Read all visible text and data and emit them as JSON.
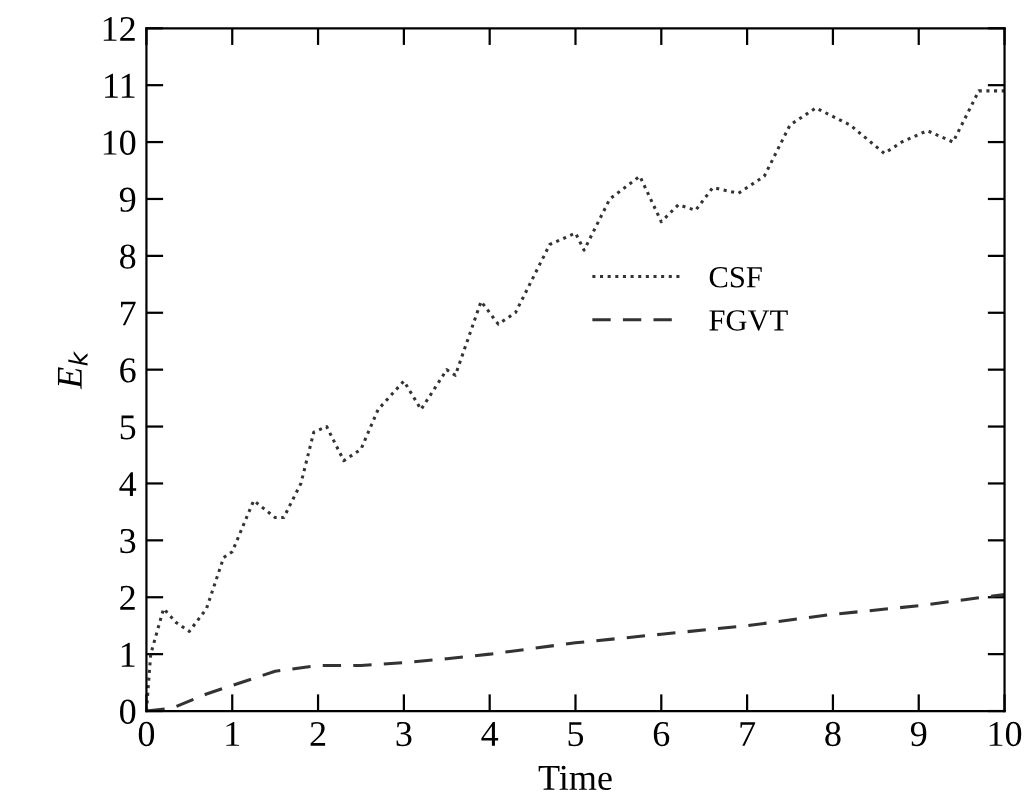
{
  "chart_data": {
    "type": "line",
    "xlabel": "Time",
    "ylabel": "E$_{k}$",
    "xlim": [
      0,
      10
    ],
    "ylim": [
      0,
      12
    ],
    "xticks": [
      0,
      1,
      2,
      3,
      4,
      5,
      6,
      7,
      8,
      9,
      10
    ],
    "yticks": [
      0,
      1,
      2,
      3,
      4,
      5,
      6,
      7,
      8,
      9,
      10,
      11,
      12
    ],
    "legend": "right",
    "grid": false,
    "marker": "none",
    "series": [
      {
        "name": "CSF",
        "color": "#333333",
        "line_style": "dotted",
        "x": [
          0,
          0.05,
          0.2,
          0.35,
          0.5,
          0.7,
          0.9,
          1.0,
          1.25,
          1.5,
          1.6,
          1.8,
          1.95,
          2.1,
          2.3,
          2.5,
          2.7,
          3.0,
          3.2,
          3.5,
          3.6,
          3.9,
          4.1,
          4.3,
          4.7,
          5.0,
          5.1,
          5.4,
          5.75,
          6.0,
          6.2,
          6.4,
          6.6,
          6.9,
          7.2,
          7.5,
          7.8,
          8.2,
          8.6,
          8.8,
          9.1,
          9.4,
          9.7,
          10
        ],
        "values": [
          0,
          1.0,
          1.8,
          1.55,
          1.4,
          1.8,
          2.7,
          2.8,
          3.7,
          3.4,
          3.4,
          4.0,
          4.9,
          5.0,
          4.4,
          4.6,
          5.3,
          5.8,
          5.3,
          6.0,
          5.9,
          7.2,
          6.8,
          7.0,
          8.2,
          8.4,
          8.1,
          9.0,
          9.4,
          8.6,
          8.9,
          8.8,
          9.2,
          9.1,
          9.4,
          10.3,
          10.6,
          10.3,
          9.8,
          10.0,
          10.2,
          10.0,
          10.9,
          10.9
        ]
      },
      {
        "name": "FGVT",
        "color": "#333333",
        "line_style": "dashed",
        "x": [
          0,
          0.3,
          0.7,
          1,
          1.5,
          2,
          2.5,
          3,
          3.5,
          4,
          5,
          6,
          7,
          8,
          9,
          10
        ],
        "values": [
          0,
          0.05,
          0.3,
          0.45,
          0.7,
          0.8,
          0.8,
          0.85,
          0.92,
          1.0,
          1.2,
          1.35,
          1.5,
          1.7,
          1.85,
          2.05
        ]
      }
    ]
  }
}
